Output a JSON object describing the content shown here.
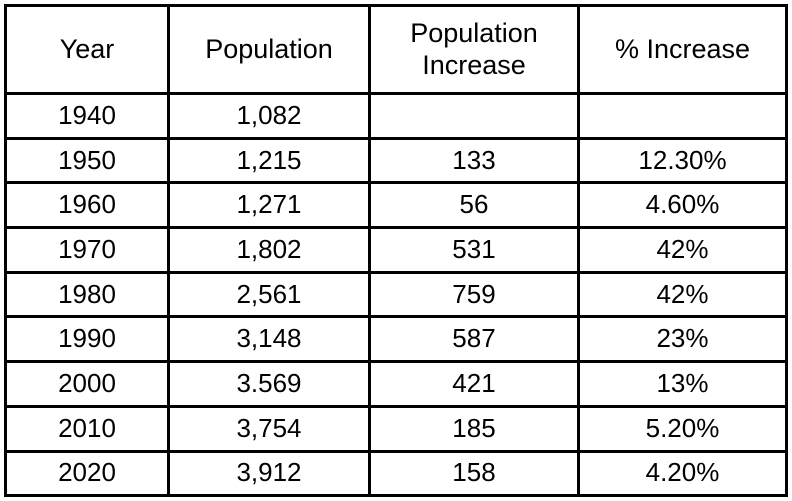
{
  "table": {
    "headers": {
      "year": "Year",
      "population": "Population",
      "pop_increase_line1": "Population",
      "pop_increase_line2": "Increase",
      "pct_increase": "% Increase"
    },
    "rows": [
      {
        "year": "1940",
        "population": "1,082",
        "increase": "",
        "pct": ""
      },
      {
        "year": "1950",
        "population": "1,215",
        "increase": "133",
        "pct": "12.30%"
      },
      {
        "year": "1960",
        "population": "1,271",
        "increase": "56",
        "pct": "4.60%"
      },
      {
        "year": "1970",
        "population": "1,802",
        "increase": "531",
        "pct": "42%"
      },
      {
        "year": "1980",
        "population": "2,561",
        "increase": "759",
        "pct": "42%"
      },
      {
        "year": "1990",
        "population": "3,148",
        "increase": "587",
        "pct": "23%"
      },
      {
        "year": "2000",
        "population": "3.569",
        "increase": "421",
        "pct": "13%"
      },
      {
        "year": "2010",
        "population": "3,754",
        "increase": "185",
        "pct": "5.20%"
      },
      {
        "year": "2020",
        "population": "3,912",
        "increase": "158",
        "pct": "4.20%"
      }
    ]
  }
}
